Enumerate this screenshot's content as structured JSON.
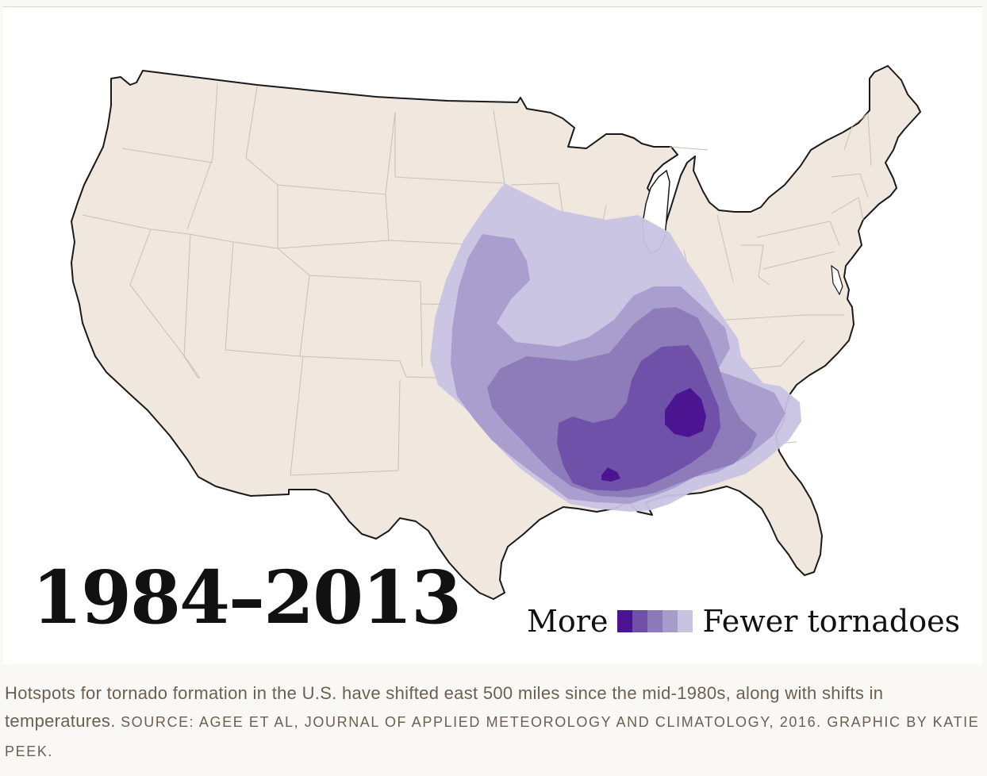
{
  "map": {
    "year_range": "1984–2013",
    "legend": {
      "more_label": "More",
      "fewer_label": "Fewer tornadoes",
      "colors": [
        "#4b1490",
        "#6f4fa8",
        "#8c7ab8",
        "#a69ccb",
        "#c7c3e1"
      ]
    },
    "land_color": "#f0e8df",
    "border_color": "#1a1a1a",
    "state_line_color": "#c9bfb3"
  },
  "caption": {
    "text": "Hotspots for tornado formation in the U.S. have shifted east 500 miles since the mid-1980s, along with shifts in temperatures.",
    "credit": "SOURCE: AGEE ET AL, JOURNAL OF APPLIED METEOROLOGY AND CLIMATOLOGY, 2016. GRAPHIC BY KATIE PEEK."
  }
}
